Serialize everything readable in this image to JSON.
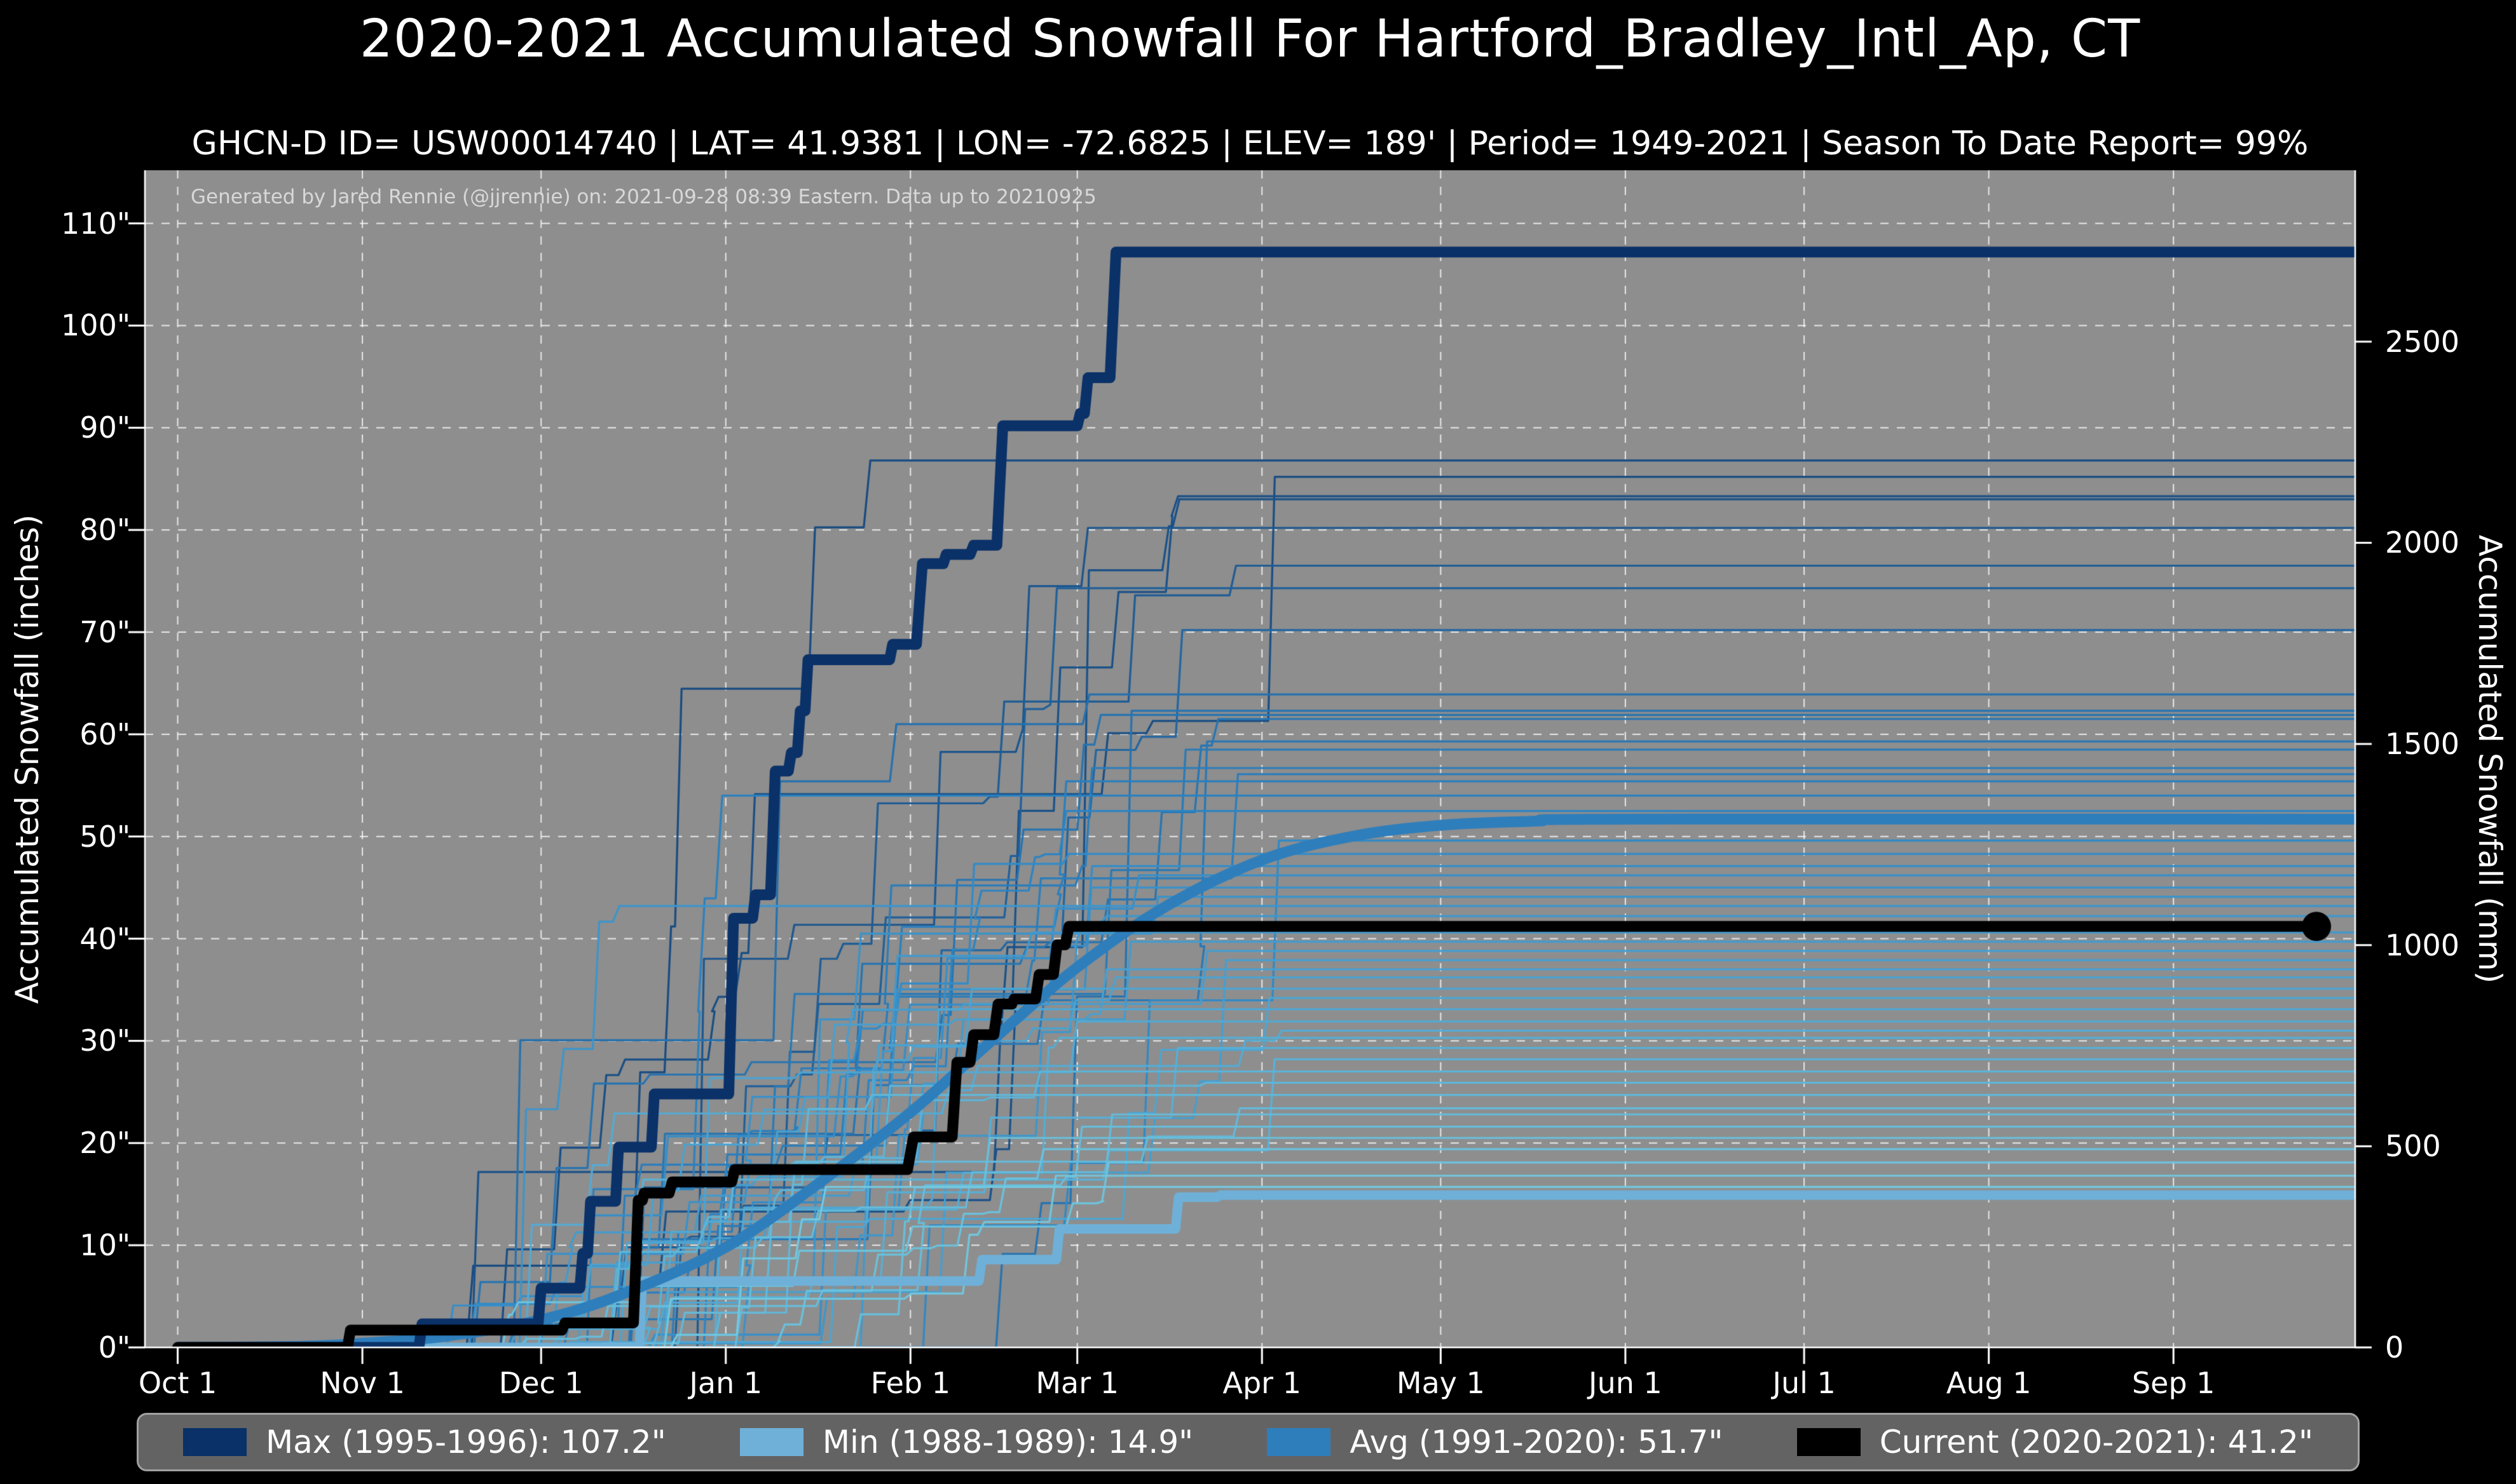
{
  "title": "2020-2021 Accumulated Snowfall For Hartford_Bradley_Intl_Ap, CT",
  "subtitle": "GHCN-D ID= USW00014740 | LAT= 41.9381 | LON= -72.6825 | ELEV= 189' | Period= 1949-2021 | Season To Date Report= 99%",
  "attribution": "Generated by Jared Rennie (@jjrennie) on: 2021-09-28 08:39 Eastern. Data up to 20210925",
  "axes": {
    "left_label": "Accumulated Snowfall (inches)",
    "right_label": "Accumulated Snowfall (mm)",
    "y_ticks_inches": [
      0,
      10,
      20,
      30,
      40,
      50,
      60,
      70,
      80,
      90,
      100,
      110
    ],
    "y_tick_suffix": "\"",
    "right_ticks_mm": [
      0,
      500,
      1000,
      1500,
      2000,
      2500
    ],
    "x_ticks": [
      {
        "label": "Oct 1",
        "day": 0
      },
      {
        "label": "Nov 1",
        "day": 31
      },
      {
        "label": "Dec 1",
        "day": 61
      },
      {
        "label": "Jan 1",
        "day": 92
      },
      {
        "label": "Feb 1",
        "day": 123
      },
      {
        "label": "Mar 1",
        "day": 151
      },
      {
        "label": "Apr 1",
        "day": 182
      },
      {
        "label": "May 1",
        "day": 212
      },
      {
        "label": "Jun 1",
        "day": 243
      },
      {
        "label": "Jul 1",
        "day": 273
      },
      {
        "label": "Aug 1",
        "day": 304
      },
      {
        "label": "Sep 1",
        "day": 335
      }
    ]
  },
  "legend": [
    {
      "name": "max",
      "label": "Max (1995-1996):  107.2\"",
      "color": "#0a3168"
    },
    {
      "name": "min",
      "label": "Min (1988-1989):  14.9\"",
      "color": "#6fb0d8"
    },
    {
      "name": "avg",
      "label": "Avg (1991-2020):  51.7\"",
      "color": "#2e7ebc"
    },
    {
      "name": "current",
      "label": "Current (2020-2021):  41.2\"",
      "color": "#000000"
    }
  ],
  "colors": {
    "page_bg": "#000000",
    "plot_bg": "#8e8e8e",
    "grid": "rgba(255,255,255,0.8)",
    "spine": "#ffffff",
    "max": "#0a3168",
    "avg": "#2e7ebc",
    "min": "#6fb0d8",
    "current": "#000000",
    "ensemble_low": "#76cbe0",
    "ensemble_mid": "#2e86c5",
    "ensemble_high": "#17497f"
  },
  "chart_data": {
    "type": "line",
    "x_unit": "days since Oct 1",
    "xlabel": "",
    "ylabel_left": "Accumulated Snowfall (inches)",
    "ylabel_right": "Accumulated Snowfall (mm)",
    "x_range_days": [
      -5.5,
      365.5
    ],
    "y_range_inches": [
      0,
      115.2
    ],
    "grid": true,
    "series": [
      {
        "name": "Max (1995-1996)",
        "final": 107.2,
        "style": "step",
        "width": 17,
        "points": [
          [
            0,
            0
          ],
          [
            40.5,
            0
          ],
          [
            41,
            2.3
          ],
          [
            60.5,
            2.3
          ],
          [
            61,
            5.8
          ],
          [
            67.5,
            5.8
          ],
          [
            68,
            9.2
          ],
          [
            68.8,
            9.2
          ],
          [
            69.3,
            14.3
          ],
          [
            73.5,
            14.3
          ],
          [
            74,
            19.6
          ],
          [
            79.5,
            19.6
          ],
          [
            80,
            24.8
          ],
          [
            92.5,
            24.8
          ],
          [
            93.3,
            42.0
          ],
          [
            96.5,
            42.0
          ],
          [
            97,
            44.3
          ],
          [
            99.5,
            44.3
          ],
          [
            100.3,
            56.4
          ],
          [
            102.5,
            56.4
          ],
          [
            103,
            58.2
          ],
          [
            104,
            58.2
          ],
          [
            104.5,
            62.3
          ],
          [
            105.3,
            62.3
          ],
          [
            105.8,
            67.3
          ],
          [
            119.5,
            67.3
          ],
          [
            120,
            68.8
          ],
          [
            124,
            68.8
          ],
          [
            125,
            76.7
          ],
          [
            128.5,
            76.7
          ],
          [
            129,
            77.6
          ],
          [
            133,
            77.6
          ],
          [
            133.6,
            78.5
          ],
          [
            137.5,
            78.5
          ],
          [
            138.5,
            90.2
          ],
          [
            151,
            90.2
          ],
          [
            151.5,
            91.4
          ],
          [
            152.2,
            91.4
          ],
          [
            152.8,
            94.9
          ],
          [
            156.5,
            94.9
          ],
          [
            157.5,
            107.2
          ],
          [
            368,
            107.2
          ]
        ]
      },
      {
        "name": "Min (1988-1989)",
        "final": 14.9,
        "style": "step",
        "width": 15,
        "points": [
          [
            0,
            0
          ],
          [
            77.5,
            0
          ],
          [
            78,
            6.5
          ],
          [
            134.5,
            6.5
          ],
          [
            135,
            8.6
          ],
          [
            147.5,
            8.6
          ],
          [
            148,
            11.6
          ],
          [
            167.5,
            11.6
          ],
          [
            168,
            14.7
          ],
          [
            174.5,
            14.7
          ],
          [
            175,
            14.9
          ],
          [
            368,
            14.9
          ]
        ]
      },
      {
        "name": "Avg (1991-2020)",
        "final": 51.7,
        "style": "smooth",
        "width": 17,
        "points": [
          [
            0,
            0
          ],
          [
            20,
            0.1
          ],
          [
            31,
            0.4
          ],
          [
            45,
            1.1
          ],
          [
            61,
            2.7
          ],
          [
            75,
            5.3
          ],
          [
            92,
            9.8
          ],
          [
            107,
            15.8
          ],
          [
            123,
            23.0
          ],
          [
            137,
            30.2
          ],
          [
            151,
            37.2
          ],
          [
            166,
            43.2
          ],
          [
            182,
            47.7
          ],
          [
            197,
            50.0
          ],
          [
            212,
            51.1
          ],
          [
            228,
            51.5
          ],
          [
            243,
            51.7
          ],
          [
            368,
            51.7
          ]
        ]
      },
      {
        "name": "Current (2020-2021)",
        "final": 41.2,
        "style": "step",
        "width": 17,
        "end_marker": {
          "day": 359,
          "value": 41.2,
          "radius": 23
        },
        "points": [
          [
            0,
            0
          ],
          [
            28.5,
            0
          ],
          [
            29,
            1.7
          ],
          [
            64.5,
            1.7
          ],
          [
            65,
            2.4
          ],
          [
            76.5,
            2.4
          ],
          [
            77.3,
            14.4
          ],
          [
            78,
            14.4
          ],
          [
            78.3,
            15.1
          ],
          [
            82.5,
            15.1
          ],
          [
            83,
            16.2
          ],
          [
            93,
            16.2
          ],
          [
            93.5,
            17.4
          ],
          [
            122.5,
            17.4
          ],
          [
            123.5,
            20.6
          ],
          [
            130,
            20.6
          ],
          [
            130.8,
            27.9
          ],
          [
            133,
            27.9
          ],
          [
            133.6,
            30.6
          ],
          [
            137,
            30.6
          ],
          [
            137.7,
            33.6
          ],
          [
            140,
            33.6
          ],
          [
            140.4,
            34.1
          ],
          [
            144,
            34.1
          ],
          [
            144.6,
            36.5
          ],
          [
            147,
            36.5
          ],
          [
            147.6,
            39.4
          ],
          [
            149,
            39.4
          ],
          [
            149.6,
            41.2
          ],
          [
            359,
            41.2
          ]
        ]
      }
    ],
    "ensemble": {
      "description": "thin background lines, one per historical season 1949-2021, season totals read from flat right-hand segments",
      "width": 3.2,
      "seed": 11,
      "finals": [
        86.8,
        85.2,
        83.3,
        83.0,
        80.2,
        76.5,
        74.3,
        70.2,
        63.9,
        62.3,
        61.9,
        61.5,
        59.3,
        58.5,
        56.7,
        56.1,
        55.4,
        54.0,
        52.5,
        49.6,
        48.3,
        47.1,
        46.2,
        45.0,
        44.1,
        43.2,
        42.2,
        40.6,
        39.7,
        38.8,
        37.9,
        37.0,
        36.2,
        35.1,
        34.2,
        33.1,
        31.9,
        31.0,
        30.3,
        29.3,
        28.2,
        27.0,
        25.9,
        24.7,
        23.4,
        22.8,
        21.6,
        20.5,
        19.4,
        18.1,
        16.8,
        15.7
      ]
    }
  }
}
